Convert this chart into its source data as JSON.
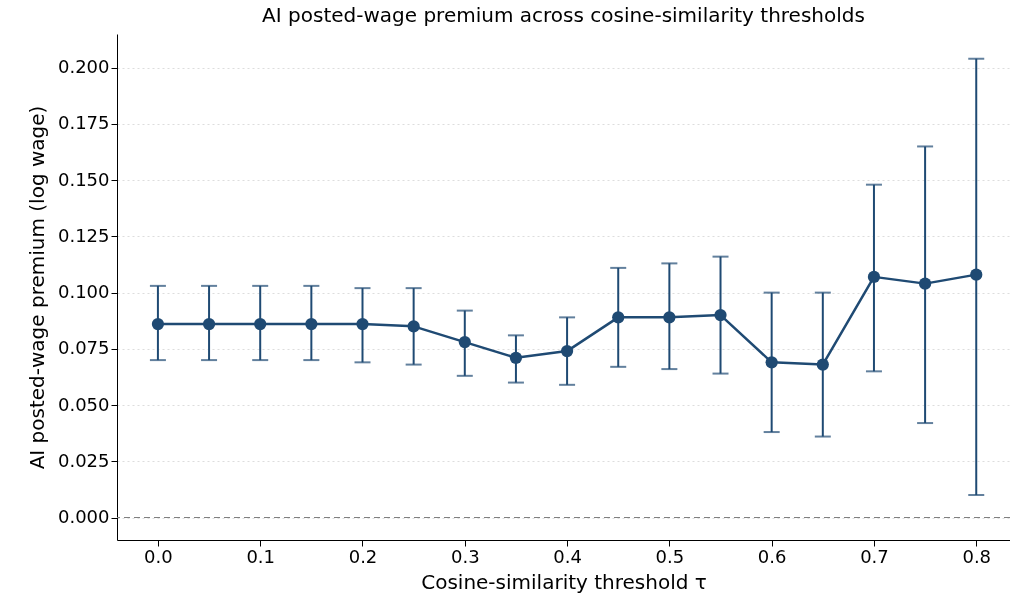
{
  "chart_data": {
    "type": "line",
    "title": "AI posted-wage premium across cosine-similarity thresholds",
    "xlabel": "Cosine-similarity threshold τ",
    "ylabel": "AI posted-wage premium (log wage)",
    "x": [
      0,
      0.05,
      0.1,
      0.15,
      0.2,
      0.25,
      0.3,
      0.35,
      0.4,
      0.45,
      0.5,
      0.55,
      0.6,
      0.65,
      0.7,
      0.75,
      0.8
    ],
    "series": [
      {
        "color": "#1f4a73",
        "values": [
          0.086,
          0.086,
          0.086,
          0.086,
          0.086,
          0.085,
          0.078,
          0.071,
          0.074,
          0.089,
          0.089,
          0.09,
          0.069,
          0.068,
          0.107,
          0.104,
          0.108
        ],
        "errors": [
          [
            0.07,
            0.103
          ],
          [
            0.07,
            0.103
          ],
          [
            0.07,
            0.103
          ],
          [
            0.07,
            0.103
          ],
          [
            0.069,
            0.102
          ],
          [
            0.068,
            0.102
          ],
          [
            0.063,
            0.092
          ],
          [
            0.06,
            0.081
          ],
          [
            0.059,
            0.089
          ],
          [
            0.067,
            0.111
          ],
          [
            0.066,
            0.113
          ],
          [
            0.064,
            0.116
          ],
          [
            0.038,
            0.1
          ],
          [
            0.036,
            0.1
          ],
          [
            0.065,
            0.148
          ],
          [
            0.042,
            0.165
          ],
          [
            0.01,
            0.204
          ]
        ]
      }
    ],
    "xlim": [
      -0.04,
      0.833
    ],
    "ylim": [
      -0.01,
      0.215
    ],
    "xticks": [
      {
        "value": 0,
        "label": "0.0"
      },
      {
        "value": 0.1,
        "label": "0.1"
      },
      {
        "value": 0.2,
        "label": "0.2"
      },
      {
        "value": 0.3,
        "label": "0.3"
      },
      {
        "value": 0.4,
        "label": "0.4"
      },
      {
        "value": 0.5,
        "label": "0.5"
      },
      {
        "value": 0.6,
        "label": "0.6"
      },
      {
        "value": 0.7,
        "label": "0.7"
      },
      {
        "value": 0.8,
        "label": "0.8"
      }
    ],
    "yticks": [
      {
        "value": 0,
        "label": "0.000"
      },
      {
        "value": 0.025,
        "label": "0.025"
      },
      {
        "value": 0.05,
        "label": "0.050"
      },
      {
        "value": 0.075,
        "label": "0.075"
      },
      {
        "value": 0.1,
        "label": "0.100"
      },
      {
        "value": 0.125,
        "label": "0.125"
      },
      {
        "value": 0.15,
        "label": "0.150"
      },
      {
        "value": 0.175,
        "label": "0.175"
      },
      {
        "value": 0.2,
        "label": "0.200"
      }
    ],
    "ref_lines": [
      {
        "axis": "y",
        "value": 0,
        "color": "#808080",
        "line_style": "dashed"
      }
    ],
    "grid": "y",
    "marker": "circle",
    "line_style": "solid"
  }
}
